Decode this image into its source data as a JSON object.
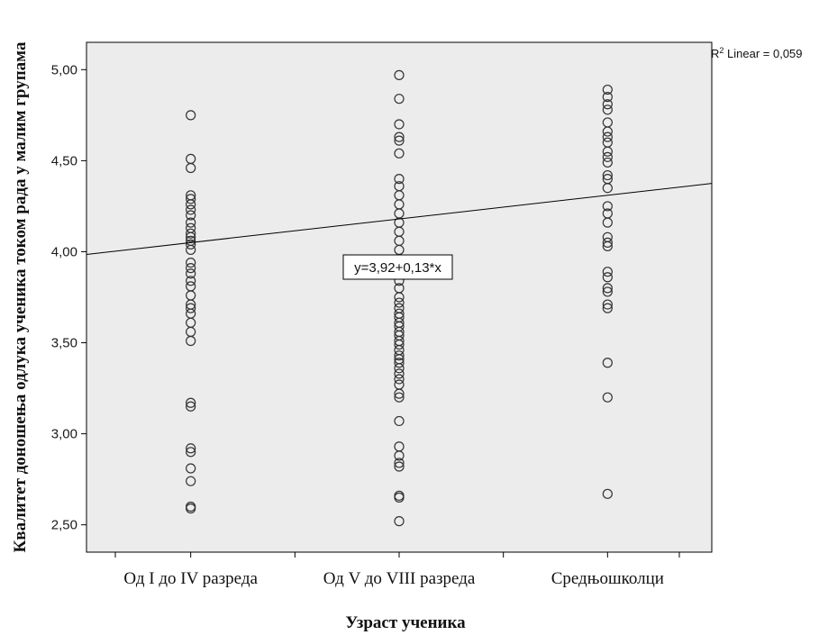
{
  "chart_data": {
    "type": "scatter",
    "xlabel": "Узраст ученика",
    "ylabel": "Квалитет доношења одлука ученика током рада у малим групама",
    "categories": [
      "Од I до IV разреда",
      "Од V до VIII разреда",
      "Средњошколци"
    ],
    "x_ticks": [
      1,
      2,
      3
    ],
    "y_ticks": [
      "2,50",
      "3,00",
      "3,50",
      "4,00",
      "4,50",
      "5,00"
    ],
    "y_tick_values": [
      2.5,
      3.0,
      3.5,
      4.0,
      4.5,
      5.0
    ],
    "ylim": [
      2.35,
      5.15
    ],
    "xlim": [
      0.5,
      3.5
    ],
    "grid": false,
    "series": [
      {
        "x": 1,
        "values": [
          4.75,
          4.51,
          4.46,
          4.31,
          4.29,
          4.26,
          4.23,
          4.2,
          4.16,
          4.13,
          4.1,
          4.08,
          4.06,
          4.04,
          4.01,
          3.94,
          3.91,
          3.88,
          3.84,
          3.81,
          3.76,
          3.71,
          3.69,
          3.66,
          3.61,
          3.56,
          3.51,
          3.17,
          3.15,
          2.92,
          2.9,
          2.81,
          2.74,
          2.6,
          2.59
        ]
      },
      {
        "x": 2,
        "values": [
          4.97,
          4.84,
          4.7,
          4.63,
          4.61,
          4.54,
          4.4,
          4.36,
          4.31,
          4.26,
          4.21,
          4.16,
          4.11,
          4.06,
          4.01,
          3.96,
          3.91,
          3.88,
          3.84,
          3.8,
          3.75,
          3.72,
          3.69,
          3.66,
          3.64,
          3.61,
          3.59,
          3.56,
          3.54,
          3.51,
          3.49,
          3.46,
          3.43,
          3.41,
          3.39,
          3.36,
          3.33,
          3.3,
          3.27,
          3.22,
          3.2,
          3.07,
          2.93,
          2.88,
          2.84,
          2.82,
          2.66,
          2.65,
          2.52
        ]
      },
      {
        "x": 3,
        "values": [
          4.89,
          4.85,
          4.81,
          4.78,
          4.71,
          4.66,
          4.63,
          4.6,
          4.55,
          4.52,
          4.49,
          4.42,
          4.4,
          4.35,
          4.25,
          4.21,
          4.16,
          4.08,
          4.05,
          4.03,
          3.89,
          3.86,
          3.8,
          3.78,
          3.71,
          3.69,
          3.39,
          3.2,
          2.67
        ]
      }
    ],
    "fit_line": {
      "intercept": 3.92,
      "slope": 0.13,
      "label": "y=3,92+0,13*x",
      "r2_label": "Linear = 0,059"
    },
    "colors": {
      "plot_bg": "#ececec",
      "marker": "#333333",
      "line": "#000000"
    }
  }
}
